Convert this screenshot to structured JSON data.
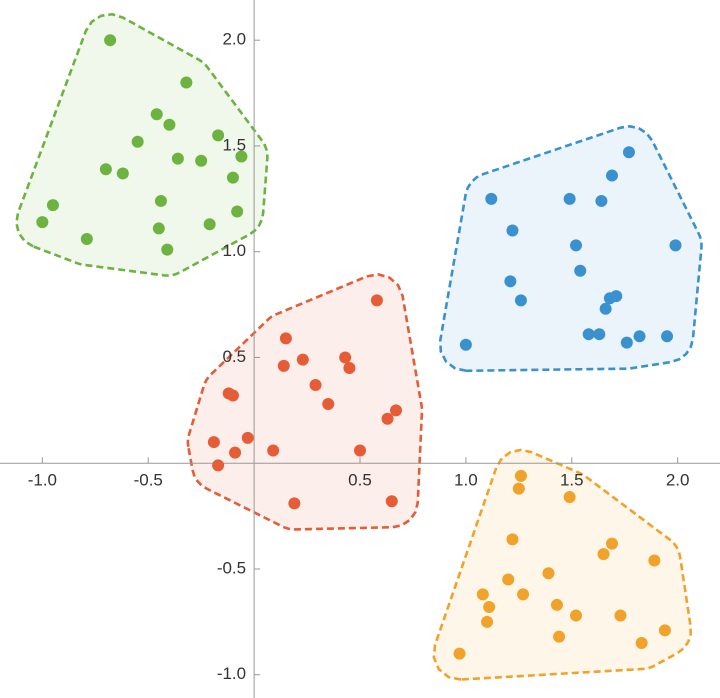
{
  "chart_data": {
    "type": "scatter",
    "xlim": [
      -1.2,
      2.2
    ],
    "ylim": [
      -1.11,
      2.19
    ],
    "xticks": [
      {
        "value": -1.0,
        "label": "-1.0"
      },
      {
        "value": -0.5,
        "label": "-0.5"
      },
      0.5,
      {
        "value": 1.0,
        "label": "1.0"
      },
      1.5,
      {
        "value": 2.0,
        "label": "2.0"
      }
    ],
    "yticks": [
      {
        "value": -1.0,
        "label": "-1.0"
      },
      {
        "value": -0.5,
        "label": "-0.5"
      },
      0.5,
      {
        "value": 1.0,
        "label": "1.0"
      },
      1.5,
      {
        "value": 2.0,
        "label": "2.0"
      }
    ],
    "hulls": true,
    "series": [
      {
        "color": "#6db33f",
        "x": [
          -0.68,
          -0.32,
          -0.46,
          -0.4,
          -0.17,
          -0.55,
          -0.06,
          -0.36,
          -0.25,
          -0.7,
          -0.62,
          -0.1,
          -0.44,
          -0.95,
          -0.08,
          -1.0,
          -0.21,
          -0.45,
          -0.79,
          -0.41
        ],
        "values": [
          2.0,
          1.8,
          1.65,
          1.6,
          1.55,
          1.52,
          1.45,
          1.44,
          1.43,
          1.39,
          1.37,
          1.35,
          1.24,
          1.22,
          1.19,
          1.14,
          1.13,
          1.11,
          1.06,
          1.01
        ]
      },
      {
        "color": "#3a91d0",
        "x": [
          1.77,
          1.69,
          1.12,
          1.49,
          1.64,
          1.22,
          1.52,
          1.99,
          1.54,
          1.21,
          1.26,
          1.71,
          1.68,
          1.66,
          1.58,
          1.63,
          1.82,
          1.95,
          1.76,
          1.0
        ],
        "values": [
          1.47,
          1.36,
          1.25,
          1.25,
          1.24,
          1.1,
          1.03,
          1.03,
          0.91,
          0.86,
          0.77,
          0.79,
          0.78,
          0.73,
          0.61,
          0.61,
          0.6,
          0.6,
          0.57,
          0.56
        ]
      },
      {
        "color": "#e65c37",
        "x": [
          0.58,
          0.15,
          0.43,
          0.23,
          0.14,
          0.45,
          0.29,
          -0.12,
          -0.1,
          0.35,
          0.67,
          0.63,
          -0.03,
          -0.19,
          0.09,
          0.5,
          -0.09,
          -0.17,
          0.19,
          0.65
        ],
        "values": [
          0.77,
          0.59,
          0.5,
          0.49,
          0.46,
          0.45,
          0.37,
          0.33,
          0.32,
          0.28,
          0.25,
          0.21,
          0.12,
          0.1,
          0.06,
          0.06,
          0.05,
          -0.01,
          -0.19,
          -0.18
        ]
      },
      {
        "color": "#f0a22a",
        "x": [
          1.26,
          1.25,
          1.49,
          1.22,
          1.69,
          1.65,
          1.89,
          1.39,
          1.2,
          1.08,
          1.27,
          1.11,
          1.43,
          1.52,
          1.73,
          1.1,
          1.44,
          1.94,
          1.83,
          0.97
        ],
        "values": [
          -0.06,
          -0.12,
          -0.16,
          -0.36,
          -0.38,
          -0.43,
          -0.46,
          -0.52,
          -0.55,
          -0.62,
          -0.62,
          -0.68,
          -0.67,
          -0.72,
          -0.72,
          -0.75,
          -0.82,
          -0.79,
          -0.85,
          -0.9
        ]
      }
    ]
  }
}
